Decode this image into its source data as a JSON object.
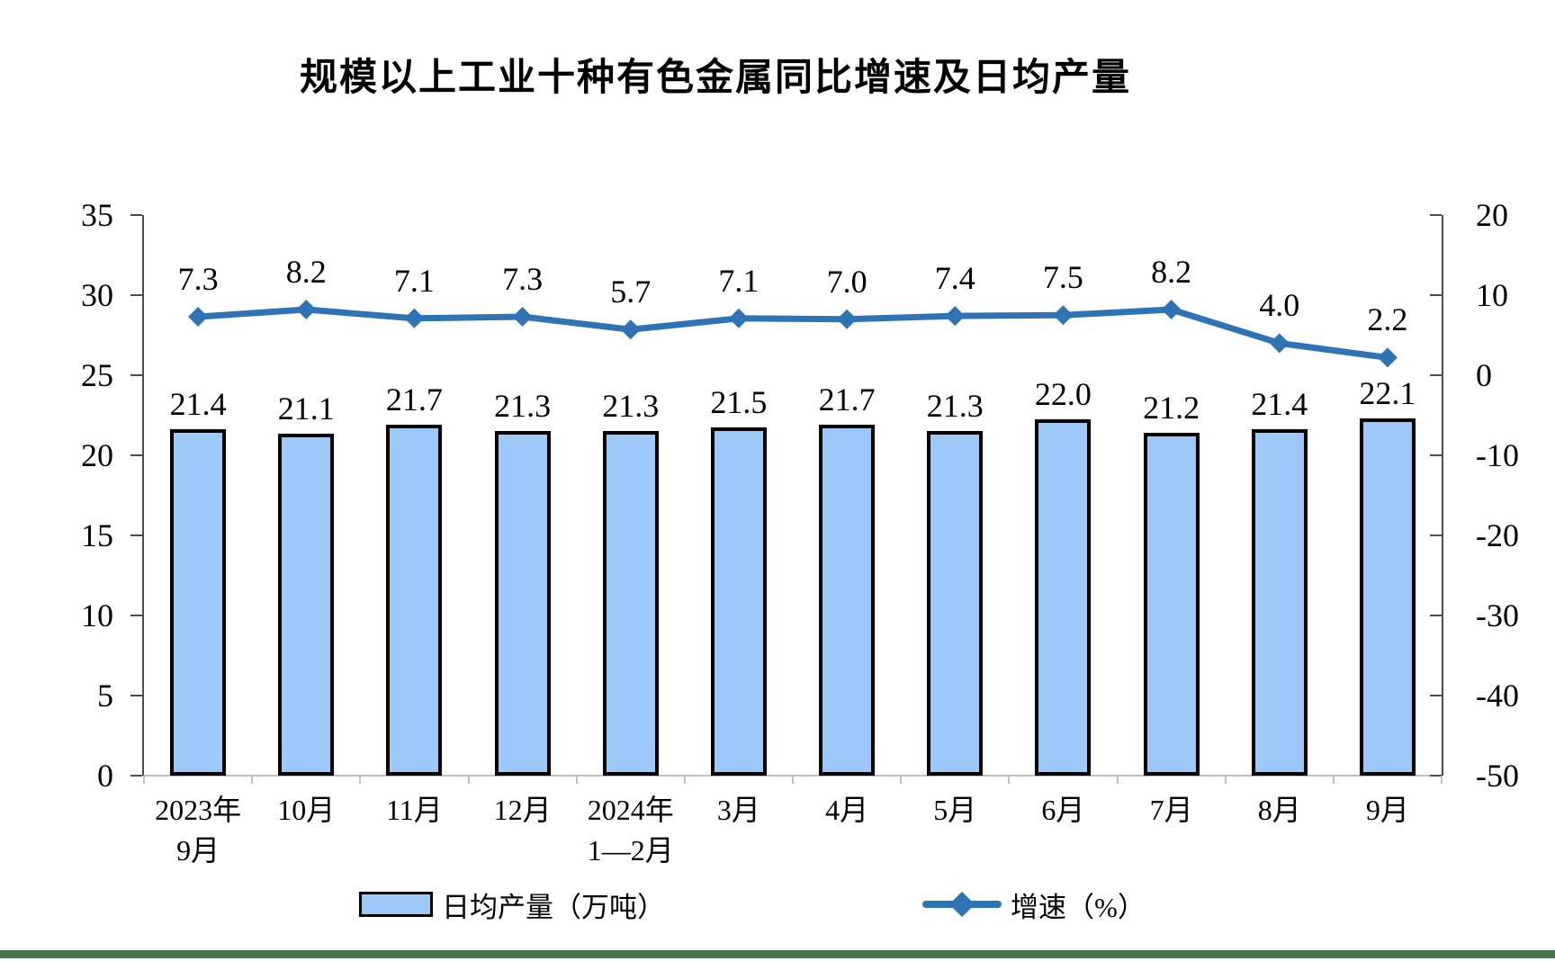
{
  "title": "规模以上工业十种有色金属同比增速及日均产量",
  "colors": {
    "bar_fill": "#9DC9F8",
    "bar_border": "#000000",
    "line": "#2E74B5",
    "axis": "#4d4d4d",
    "baseline": "#C0C0C0",
    "footer_band": "#47734D",
    "text": "#000000"
  },
  "legend": {
    "bar_label": "日均产量（万吨）",
    "line_label": "增速（%）"
  },
  "chart_data": {
    "type": "bar",
    "title": "规模以上工业十种有色金属同比增速及日均产量",
    "categories": [
      [
        "2023年",
        "9月"
      ],
      [
        "10月"
      ],
      [
        "11月"
      ],
      [
        "12月"
      ],
      [
        "2024年",
        "1—2月"
      ],
      [
        "3月"
      ],
      [
        "4月"
      ],
      [
        "5月"
      ],
      [
        "6月"
      ],
      [
        "7月"
      ],
      [
        "8月"
      ],
      [
        "9月"
      ]
    ],
    "series": [
      {
        "name": "日均产量（万吨）",
        "type": "bar",
        "axis": "left",
        "values": [
          21.4,
          21.1,
          21.7,
          21.3,
          21.3,
          21.5,
          21.7,
          21.3,
          22.0,
          21.2,
          21.4,
          22.1
        ]
      },
      {
        "name": "增速（%）",
        "type": "line",
        "axis": "right",
        "values": [
          7.3,
          8.2,
          7.1,
          7.3,
          5.7,
          7.1,
          7.0,
          7.4,
          7.5,
          8.2,
          4.0,
          2.2
        ]
      }
    ],
    "left_axis": {
      "min": 0,
      "max": 35,
      "ticks": [
        35,
        30,
        25,
        20,
        15,
        10,
        5,
        0
      ]
    },
    "right_axis": {
      "min": -50,
      "max": 20,
      "ticks": [
        20,
        10,
        0,
        -10,
        -20,
        -30,
        -40,
        -50
      ]
    },
    "grid": false,
    "legend_position": "bottom",
    "data_labels": true
  }
}
